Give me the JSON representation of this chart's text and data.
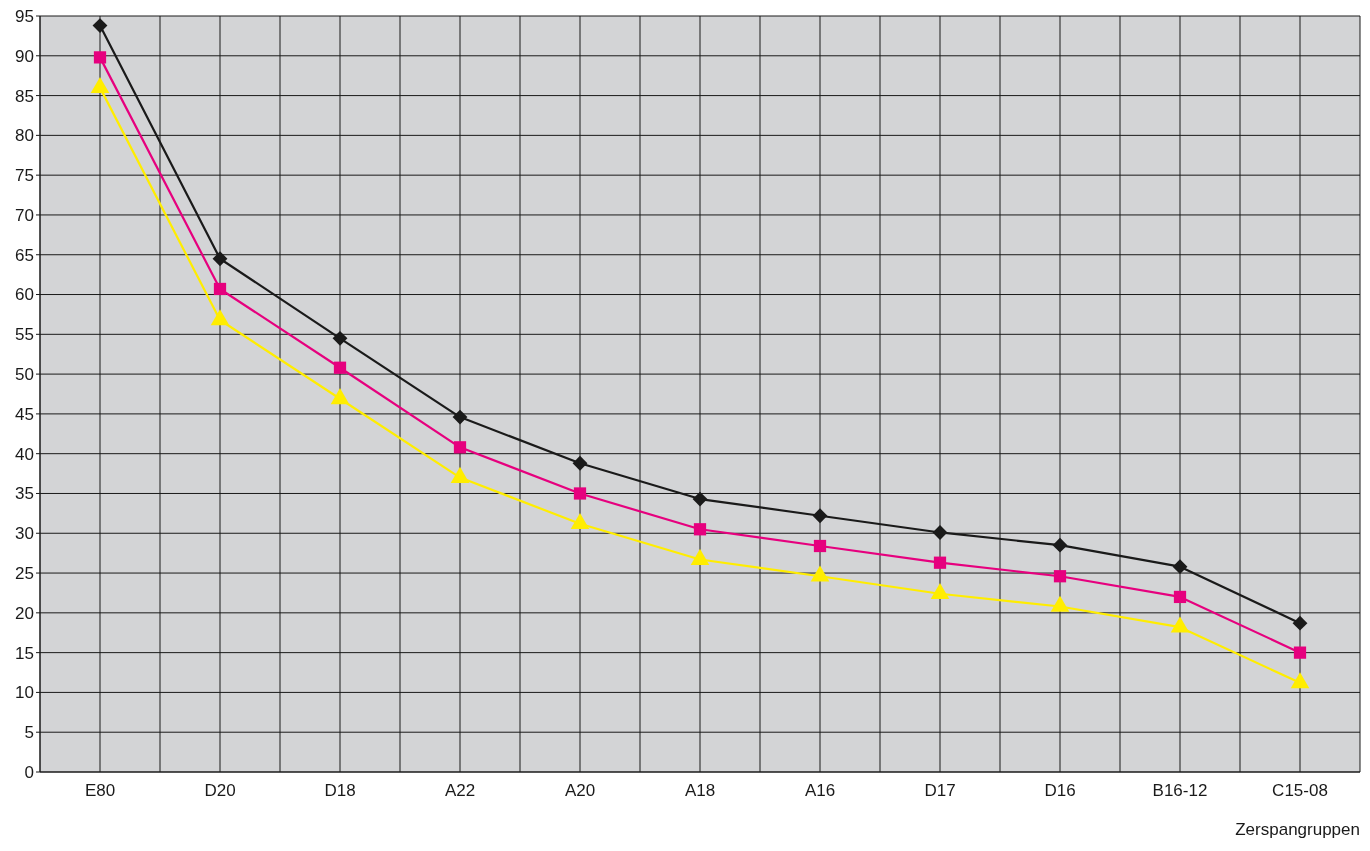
{
  "chart_data": {
    "type": "line",
    "xlabel": "Zerspangruppen",
    "categories": [
      "E80",
      "D20",
      "D18",
      "A22",
      "A20",
      "A18",
      "A16",
      "D17",
      "D16",
      "B16-12",
      "C15-08"
    ],
    "series": [
      {
        "color": "#1a1a1a",
        "marker": "diamond",
        "values": [
          93.8,
          64.5,
          54.5,
          44.6,
          38.8,
          34.3,
          32.2,
          30.1,
          28.5,
          25.8,
          18.7
        ]
      },
      {
        "color": "#e6007e",
        "marker": "square",
        "values": [
          89.8,
          60.7,
          50.8,
          40.8,
          35.0,
          30.5,
          28.4,
          26.3,
          24.6,
          22.0,
          15.0
        ]
      },
      {
        "color": "#ffed00",
        "marker": "triangle",
        "values": [
          86.0,
          56.8,
          46.9,
          37.0,
          31.2,
          26.7,
          24.6,
          22.4,
          20.8,
          18.2,
          11.2
        ]
      }
    ],
    "ylim": [
      0,
      95
    ],
    "yticks": [
      0,
      5,
      10,
      15,
      20,
      25,
      30,
      35,
      40,
      45,
      50,
      55,
      60,
      65,
      70,
      75,
      80,
      85,
      90,
      95
    ],
    "grid": true
  }
}
